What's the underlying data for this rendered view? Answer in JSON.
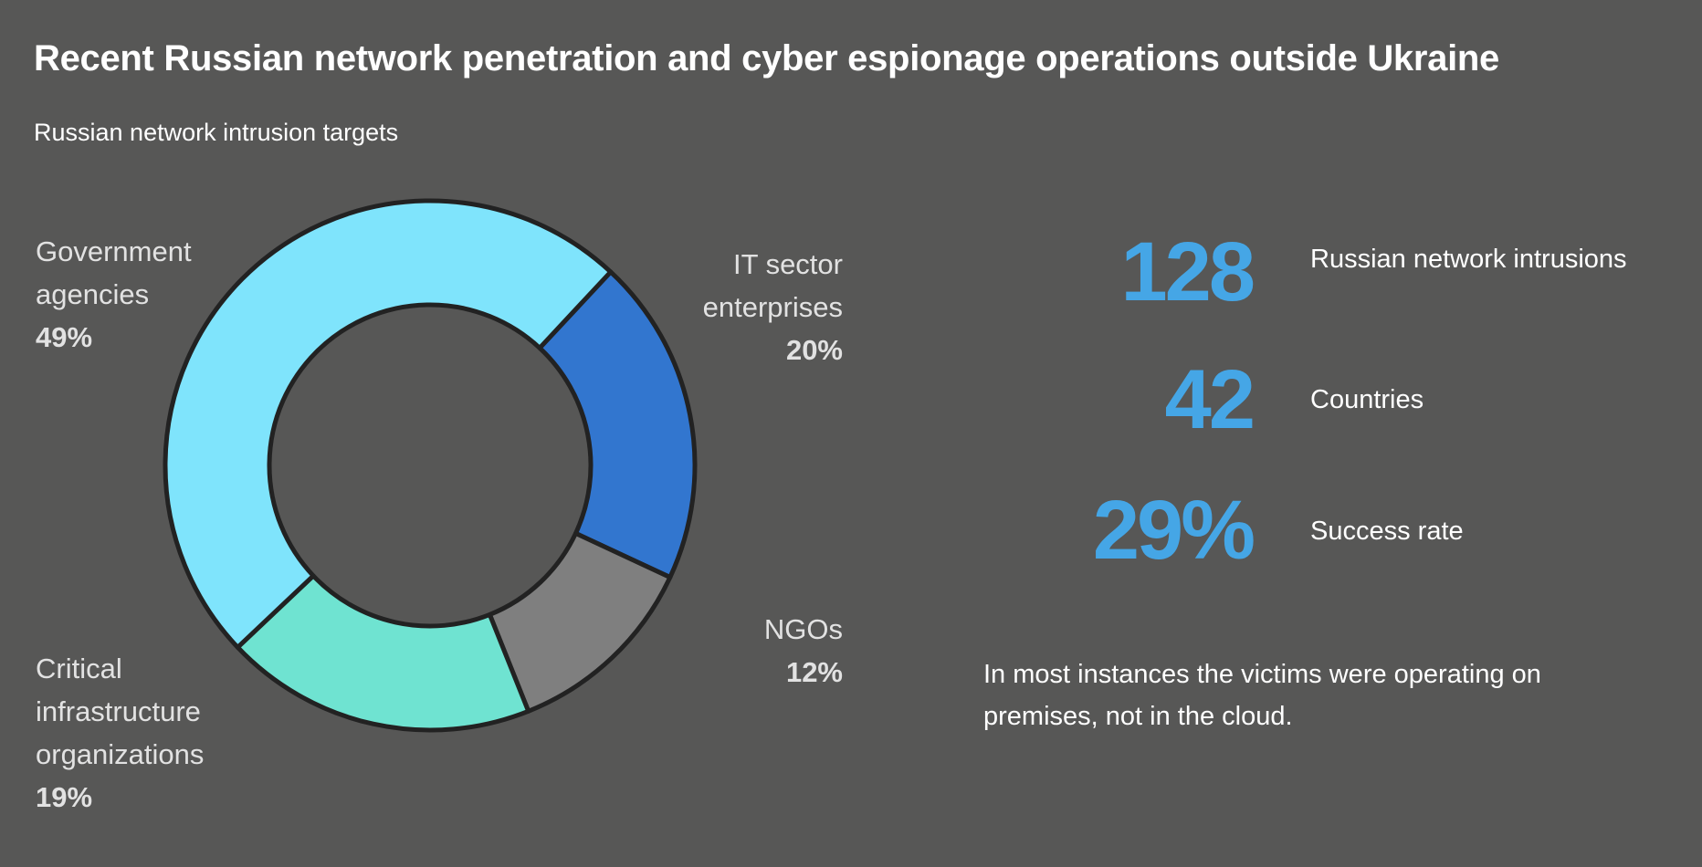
{
  "title": "Recent Russian network penetration and cyber espionage operations outside Ukraine",
  "subtitle": "Russian network intrusion targets",
  "chart_data": {
    "type": "pie",
    "donut": true,
    "title": "Russian network intrusion targets",
    "slices": [
      {
        "label": "IT sector enterprises",
        "lines": [
          "IT sector",
          "enterprises"
        ],
        "value": 20,
        "display": "20%",
        "color": "#3276cf"
      },
      {
        "label": "NGOs",
        "lines": [
          "NGOs"
        ],
        "value": 12,
        "display": "12%",
        "color": "#7f7f7f"
      },
      {
        "label": "Critical infrastructure organizations",
        "lines": [
          "Critical",
          "infrastructure",
          "organizations"
        ],
        "value": 19,
        "display": "19%",
        "color": "#6fe3d1"
      },
      {
        "label": "Government agencies",
        "lines": [
          "Government",
          "agencies"
        ],
        "value": 49,
        "display": "49%",
        "color": "#7fe4fc"
      }
    ]
  },
  "stats": [
    {
      "value": "128",
      "label": "Russian network intrusions"
    },
    {
      "value": "42",
      "label": "Countries"
    },
    {
      "value": "29%",
      "label": "Success rate"
    }
  ],
  "note": "In most instances the victims were operating on premises, not in the cloud.",
  "colors": {
    "background": "#575756",
    "accent": "#45a6e6",
    "outline": "#222222"
  }
}
